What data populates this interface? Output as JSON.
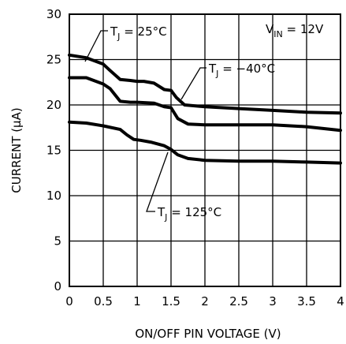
{
  "chart_data": {
    "type": "line",
    "xlabel": "ON/OFF PIN VOLTAGE (V)",
    "ylabel": "CURRENT (μA)",
    "xlim": [
      0,
      4
    ],
    "ylim": [
      0,
      30
    ],
    "xticks": [
      "0",
      "0.5",
      "1",
      "1.5",
      "2",
      "2.5",
      "3",
      "3.5",
      "4"
    ],
    "yticks": [
      "0",
      "5",
      "10",
      "15",
      "20",
      "25",
      "30"
    ],
    "grid": true,
    "annotations": [
      {
        "id": "cond",
        "text": "V",
        "sub": "IN",
        "rest": " = 12V"
      },
      {
        "id": "s1",
        "text": "T",
        "sub": "J",
        "rest": " = 25°C"
      },
      {
        "id": "s2",
        "text": "T",
        "sub": "J",
        "rest": " = −40°C"
      },
      {
        "id": "s3",
        "text": "T",
        "sub": "J",
        "rest": " = 125°C"
      }
    ],
    "series": [
      {
        "x": [
          0,
          0.25,
          0.5,
          0.6,
          0.75,
          0.9,
          1.0,
          1.1,
          1.25,
          1.4,
          1.5,
          1.58,
          1.7,
          2.0,
          2.5,
          3.0,
          3.5,
          4.0
        ],
        "values": [
          25.5,
          25.2,
          24.5,
          23.8,
          22.8,
          22.7,
          22.6,
          22.6,
          22.4,
          21.7,
          21.6,
          20.8,
          20.0,
          19.8,
          19.6,
          19.4,
          19.2,
          19.1
        ]
      },
      {
        "x": [
          0,
          0.25,
          0.5,
          0.6,
          0.75,
          0.9,
          1.0,
          1.25,
          1.4,
          1.5,
          1.6,
          1.75,
          2.0,
          2.5,
          3.0,
          3.5,
          4.0
        ],
        "values": [
          23.0,
          23.0,
          22.3,
          21.8,
          20.4,
          20.3,
          20.3,
          20.2,
          19.8,
          19.7,
          18.5,
          17.9,
          17.8,
          17.8,
          17.8,
          17.6,
          17.2
        ]
      },
      {
        "x": [
          0,
          0.25,
          0.5,
          0.75,
          0.85,
          0.95,
          1.05,
          1.2,
          1.4,
          1.5,
          1.6,
          1.75,
          2.0,
          2.5,
          3.0,
          3.5,
          4.0
        ],
        "values": [
          18.1,
          18.0,
          17.7,
          17.3,
          16.7,
          16.2,
          16.1,
          15.9,
          15.5,
          15.1,
          14.5,
          14.1,
          13.9,
          13.8,
          13.8,
          13.7,
          13.6
        ]
      }
    ]
  }
}
